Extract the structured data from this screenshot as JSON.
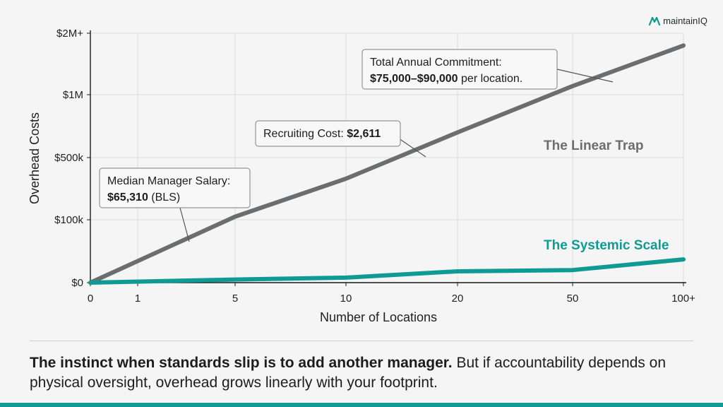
{
  "brand": {
    "name": "maintainIQ",
    "icon": "maintainiq-logo-icon",
    "color": "#0f9b94"
  },
  "chart_data": {
    "type": "line",
    "ylabel": "Overhead Costs",
    "xlabel": "Number of Locations",
    "x_ticks": [
      "0",
      "1",
      "5",
      "10",
      "20",
      "50",
      "100+"
    ],
    "y_ticks": [
      "$0",
      "$100k",
      "$500k",
      "$1M",
      "$2M+"
    ],
    "grid": true,
    "series": [
      {
        "name": "The Linear Trap",
        "color": "#6b6e70",
        "points": [
          [
            "0",
            0.0
          ],
          [
            "5",
            1.05
          ],
          [
            "10",
            1.66
          ],
          [
            "20",
            2.4
          ],
          [
            "50",
            3.14
          ],
          [
            "100+",
            3.8
          ]
        ]
      },
      {
        "name": "The Systemic Scale",
        "color": "#0f9b94",
        "points": [
          [
            "0",
            0.0
          ],
          [
            "5",
            0.05
          ],
          [
            "10",
            0.08
          ],
          [
            "20",
            0.18
          ],
          [
            "50",
            0.2
          ],
          [
            "100+",
            0.37
          ]
        ]
      }
    ],
    "annotations": [
      {
        "lines": [
          [
            {
              "t": "Median Manager Salary:",
              "b": false
            }
          ],
          [
            {
              "t": "$65,310",
              "b": true
            },
            {
              "t": " (BLS)",
              "b": false
            }
          ]
        ]
      },
      {
        "lines": [
          [
            {
              "t": "Recruiting Cost: ",
              "b": false
            },
            {
              "t": "$2,611",
              "b": true
            }
          ]
        ]
      },
      {
        "lines": [
          [
            {
              "t": "Total Annual Commitment:",
              "b": false
            }
          ],
          [
            {
              "t": "$75,000–$90,000",
              "b": true
            },
            {
              "t": " per location.",
              "b": false
            }
          ]
        ]
      }
    ]
  },
  "footer": {
    "bold": "The instinct when standards slip is to add another manager.",
    "normal": " But if accountability depends on physical oversight, overhead grows linearly with your footprint."
  }
}
